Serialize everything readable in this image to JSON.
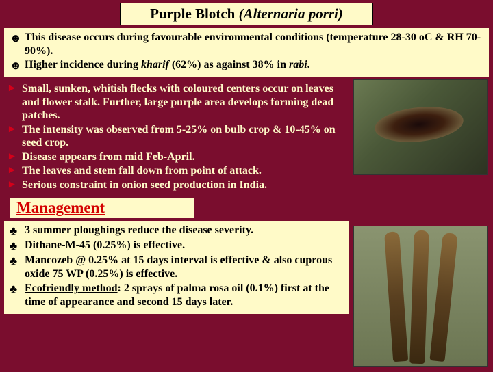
{
  "title": {
    "plain": "Purple Blotch ",
    "italic": "(Alternaria porri)"
  },
  "conditions": [
    {
      "bullet": "☻",
      "text": "This disease occurs during favourable environmental conditions (temperature 28-30 oC & RH 70-90%)."
    },
    {
      "bullet": "☻",
      "text_pre": "Higher incidence during ",
      "italic1": "kharif",
      "mid": " (62%) as against 38% in ",
      "italic2": "rabi",
      "post": "."
    }
  ],
  "symptoms": [
    {
      "bullet": "►",
      "text": "Small, sunken, whitish flecks with coloured centers occur on leaves and flower stalk. Further, large purple area develops forming dead patches."
    },
    {
      "bullet": "►",
      "text": "The intensity was observed from 5-25% on bulb crop & 10-45% on seed crop."
    },
    {
      "bullet": "►",
      "text": "Disease appears from mid Feb-April."
    },
    {
      "bullet": "►",
      "text": "The leaves and stem fall down from point of attack."
    },
    {
      "bullet": "►",
      "text": "Serious constraint in onion seed production in India."
    }
  ],
  "management_title": "Management",
  "management": [
    {
      "bullet": "♣",
      "text": "3 summer ploughings reduce the disease severity."
    },
    {
      "bullet": "♣",
      "text": "Dithane-M-45 (0.25%) is effective."
    },
    {
      "bullet": "♣",
      "text": "Mancozeb @ 0.25% at 15 days interval is effective & also cuprous oxide 75 WP (0.25%) is effective."
    },
    {
      "bullet": "♣",
      "eco": "Ecofriendly method",
      "text": ": 2 sprays of palma rosa oil (0.1%) first at the time of appearance and second 15 days later."
    }
  ]
}
